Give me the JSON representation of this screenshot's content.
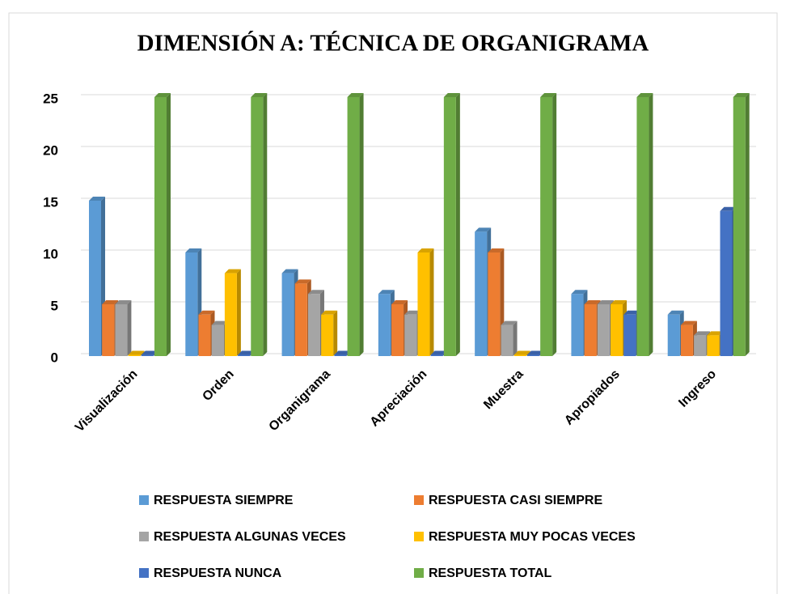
{
  "chart_data": {
    "type": "bar3d",
    "title": "DIMENSIÓN A: TÉCNICA DE ORGANIGRAMA",
    "categories": [
      "Visualización",
      "Orden",
      "Organigrama",
      "Apreciación",
      "Muestra",
      "Apropiados",
      "Ingreso"
    ],
    "series": [
      {
        "name": "RESPUESTA SIEMPRE",
        "color": "#5b9bd5",
        "values": [
          15,
          10,
          8,
          6,
          12,
          6,
          4
        ]
      },
      {
        "name": "RESPUESTA CASI SIEMPRE",
        "color": "#ed7d31",
        "values": [
          5,
          4,
          7,
          5,
          10,
          5,
          3
        ]
      },
      {
        "name": "RESPUESTA ALGUNAS VECES",
        "color": "#a5a5a5",
        "values": [
          5,
          3,
          6,
          4,
          3,
          5,
          2
        ]
      },
      {
        "name": "RESPUESTA MUY POCAS VECES",
        "color": "#ffc000",
        "values": [
          0,
          8,
          4,
          10,
          0,
          5,
          2
        ]
      },
      {
        "name": "RESPUESTA NUNCA",
        "color": "#4472c4",
        "values": [
          0,
          0,
          0,
          0,
          0,
          4,
          14
        ]
      },
      {
        "name": "RESPUESTA TOTAL",
        "color": "#70ad47",
        "values": [
          25,
          25,
          25,
          25,
          25,
          25,
          25
        ]
      }
    ],
    "ylim": [
      0,
      25
    ],
    "yticks": [
      0,
      5,
      10,
      15,
      20,
      25
    ],
    "grid": true
  }
}
